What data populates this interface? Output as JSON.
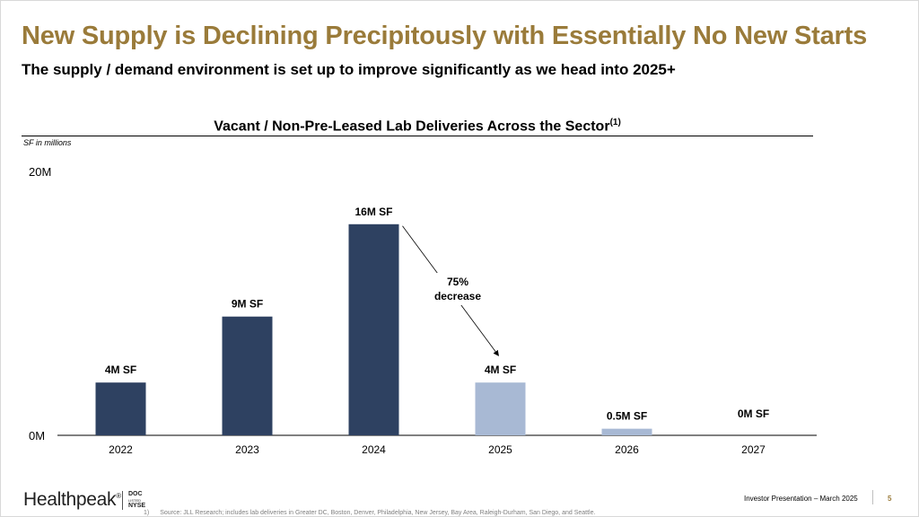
{
  "header": {
    "title": "New Supply is Declining Precipitously with Essentially No New Starts",
    "subtitle": "The supply / demand environment is set up to improve significantly as we head into 2025+"
  },
  "chart_data": {
    "type": "bar",
    "title": "Vacant / Non-Pre-Leased Lab Deliveries Across the Sector",
    "title_superscript": "(1)",
    "units_note": "SF in millions",
    "categories": [
      "2022",
      "2023",
      "2024",
      "2025",
      "2026",
      "2027"
    ],
    "values": [
      4,
      9,
      16,
      4,
      0.5,
      0
    ],
    "data_labels": [
      "4M SF",
      "9M SF",
      "16M SF",
      "4M SF",
      "0.5M SF",
      "0M SF"
    ],
    "bar_colors": [
      "#2e4161",
      "#2e4161",
      "#2e4161",
      "#a8b9d4",
      "#a8b9d4",
      "#a8b9d4"
    ],
    "ylim": [
      0,
      20
    ],
    "y_ticks": [
      {
        "value": 0,
        "label": "0M"
      },
      {
        "value": 20,
        "label": "20M"
      }
    ],
    "grid": false,
    "legend": "none",
    "annotation": {
      "lines": [
        "75%",
        "decrease"
      ],
      "from_category": "2024",
      "to_category": "2025"
    }
  },
  "footer": {
    "logo_text": "Healthpeak",
    "logo_mark": "®",
    "ticker_lines": [
      "DOC",
      "LISTED",
      "NYSE"
    ],
    "footnote_number": "1)",
    "footnote_text": "Source: JLL Research; includes lab deliveries in Greater DC, Boston, Denver, Philadelphia, New Jersey, Bay Area, Raleigh-Durham, San Diego, and Seattle.",
    "presentation_label": "Investor Presentation – March 2025",
    "page_number": "5"
  },
  "colors": {
    "title": "#9a7b3a",
    "bar_historical": "#2e4161",
    "bar_forecast": "#a8b9d4"
  }
}
